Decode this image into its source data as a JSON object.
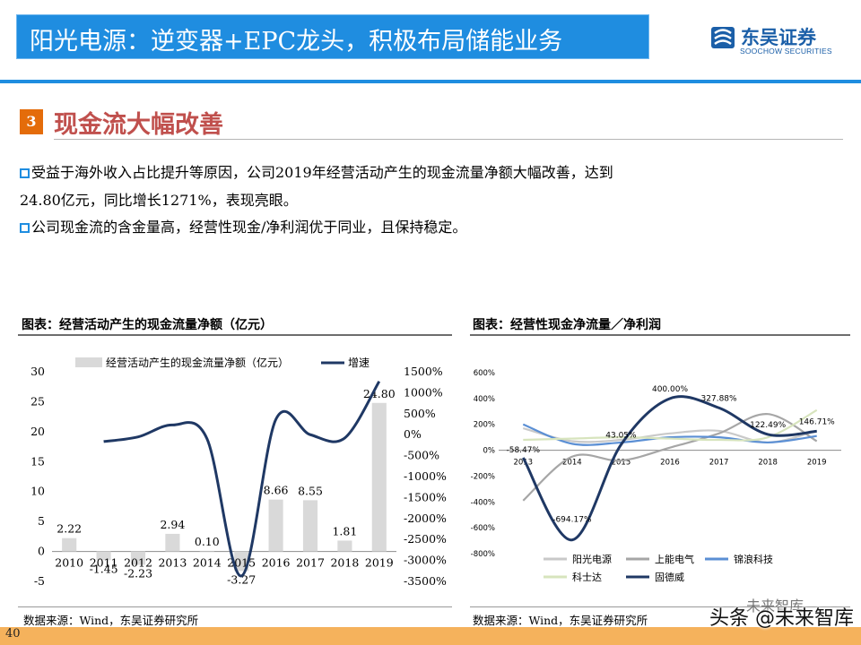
{
  "header": {
    "title": "阳光电源：逆变器+EPC龙头，积极布局储能业务",
    "logo_cn": "东吴证券",
    "logo_en": "SOOCHOW SECURITIES"
  },
  "section": {
    "number": "3",
    "title": "现金流大幅改善"
  },
  "bullets": [
    {
      "line1": "受益于海外收入占比提升等原因，公司2019年经营活动产生的现金流量净额大幅改善，达到",
      "line2": "24.80亿元，同比增长1271%，表现亮眼。"
    },
    {
      "line1": "公司现金流的含金量高，经营性现金/净利润优于同业，且保持稳定。"
    }
  ],
  "chart_left_title": "图表：经营活动产生的现金流量净额（亿元）",
  "chart_right_title": "图表：经营性现金净流量／净利润",
  "source_left": "数据来源：Wind，东吴证券研究所",
  "source_right": "数据来源：Wind，东吴证券研究所",
  "page_number": "40",
  "watermark": {
    "top": "未来智库",
    "main": "头条 @未来智库"
  },
  "colors": {
    "title_bar": "#1f8de0",
    "section_number": "#e46c0a",
    "section_title": "#c0504d",
    "bar": "#d9d9d9",
    "growth_line": "#1f3864"
  },
  "chart_data": [
    {
      "type": "bar",
      "categories": [
        "2010",
        "2011",
        "2012",
        "2013",
        "2014",
        "2015",
        "2016",
        "2017",
        "2018",
        "2019"
      ],
      "series": [
        {
          "name": "经营活动产生的现金流量净额（亿元）",
          "type": "bar",
          "axis": "left",
          "values": [
            2.22,
            -1.45,
            -2.23,
            2.94,
            0.1,
            -3.27,
            8.66,
            8.55,
            1.81,
            24.8
          ],
          "labels": [
            "2.22",
            "-1.45",
            "-2.23",
            "2.94",
            "0.10",
            "-3.27",
            "8.66",
            "8.55",
            "1.81",
            "24.80"
          ]
        },
        {
          "name": "增速",
          "type": "line",
          "axis": "right",
          "values": [
            null,
            -165,
            -54,
            232,
            -97,
            -3370,
            365,
            -1,
            -79,
            1271
          ]
        }
      ],
      "ylim": [
        -5,
        30
      ],
      "yticks": [
        "30",
        "25",
        "20",
        "15",
        "10",
        "5",
        "0",
        "-5"
      ],
      "ylim_right": [
        -3500,
        1500
      ],
      "yticks_right": [
        "1500%",
        "1000%",
        "500%",
        "0%",
        "-500%",
        "-1000%",
        "-1500%",
        "-2000%",
        "-2500%",
        "-3000%",
        "-3500%"
      ],
      "legend": "top"
    },
    {
      "type": "line",
      "categories": [
        "2013",
        "2014",
        "2015",
        "2016",
        "2017",
        "2018",
        "2019"
      ],
      "series": [
        {
          "name": "阳光电源",
          "values": [
            170,
            70,
            80,
            130,
            150,
            60,
            150
          ],
          "color": "#c9c9c9"
        },
        {
          "name": "上能电气",
          "values": [
            -390,
            -50,
            -80,
            20,
            130,
            280,
            70
          ],
          "color": "#a6a6a6"
        },
        {
          "name": "锦浪科技",
          "values": [
            200,
            50,
            60,
            100,
            100,
            60,
            110
          ],
          "color": "#5b8fd4"
        },
        {
          "name": "科士达",
          "values": [
            80,
            90,
            100,
            90,
            80,
            100,
            310
          ],
          "color": "#d7e4bd"
        },
        {
          "name": "固德威",
          "values": [
            -58.47,
            -694.17,
            43.05,
            400.0,
            327.88,
            122.49,
            146.71
          ],
          "color": "#1f3864",
          "labels": [
            "-58.47%",
            "-694.17%",
            "43.05%",
            "400.00%",
            "327.88%",
            "122.49%",
            "146.71%"
          ]
        }
      ],
      "ylim": [
        -800,
        600
      ],
      "yticks": [
        "600%",
        "400%",
        "200%",
        "0%",
        "-200%",
        "-400%",
        "-600%",
        "-800%"
      ],
      "legend": "bottom"
    }
  ]
}
